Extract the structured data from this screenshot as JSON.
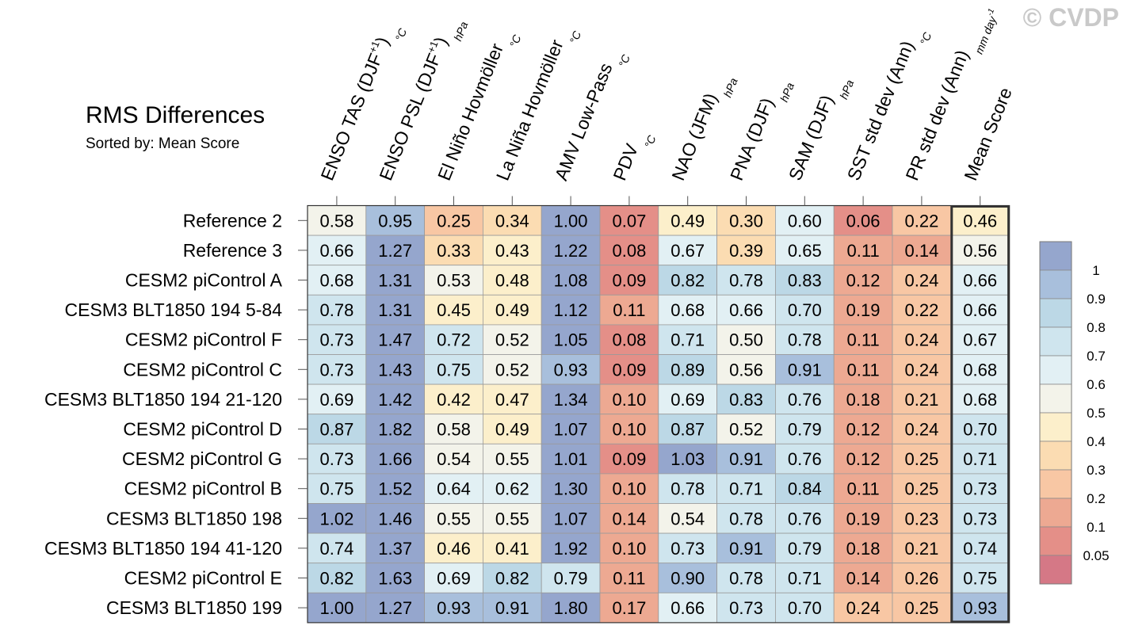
{
  "title": "RMS Differences",
  "subtitle": "Sorted by: Mean Score",
  "watermark": "© CVDP",
  "colorbar": {
    "labels": [
      "1",
      "0.9",
      "0.8",
      "0.7",
      "0.6",
      "0.5",
      "0.4",
      "0.3",
      "0.2",
      "0.1",
      "0.05"
    ],
    "colors": [
      "#95a6cd",
      "#a8bfdc",
      "#bcd8e6",
      "#cfe5ee",
      "#e2f0f4",
      "#f3f3ea",
      "#fcefcb",
      "#fbdcb2",
      "#f8c7a4",
      "#eda992",
      "#e48f88",
      "#d57886"
    ]
  },
  "chart_data": {
    "type": "heatmap",
    "title": "RMS Differences",
    "subtitle": "Sorted by: Mean Score",
    "columns": [
      {
        "label": "ENSO TAS (DJF",
        "sup": "+1",
        "close": ")",
        "unit": "°C",
        "unit_sup": ""
      },
      {
        "label": "ENSO PSL (DJF",
        "sup": "+1",
        "close": ")",
        "unit": "hPa",
        "unit_sup": ""
      },
      {
        "label": "El Niño Hovmöller",
        "sup": "",
        "close": "",
        "unit": "°C",
        "unit_sup": ""
      },
      {
        "label": "La Niña Hovmöller",
        "sup": "",
        "close": "",
        "unit": "°C",
        "unit_sup": ""
      },
      {
        "label": "AMV Low-Pass",
        "sup": "",
        "close": "",
        "unit": "°C",
        "unit_sup": ""
      },
      {
        "label": "PDV",
        "sup": "",
        "close": "",
        "unit": "°C",
        "unit_sup": ""
      },
      {
        "label": "NAO (JFM)",
        "sup": "",
        "close": "",
        "unit": "hPa",
        "unit_sup": ""
      },
      {
        "label": "PNA (DJF)",
        "sup": "",
        "close": "",
        "unit": "hPa",
        "unit_sup": ""
      },
      {
        "label": "SAM (DJF)",
        "sup": "",
        "close": "",
        "unit": "hPa",
        "unit_sup": ""
      },
      {
        "label": "SST std dev (Ann)",
        "sup": "",
        "close": "",
        "unit": "°C",
        "unit_sup": ""
      },
      {
        "label": "PR std dev (Ann)",
        "sup": "",
        "close": "",
        "unit": "mm day",
        "unit_sup": "-1"
      },
      {
        "label": "Mean Score",
        "sup": "",
        "close": "",
        "unit": "",
        "unit_sup": ""
      }
    ],
    "rows": [
      "Reference 2",
      "Reference 3",
      "CESM2 piControl A",
      "CESM3 BLT1850 194 5-84",
      "CESM2 piControl F",
      "CESM2 piControl C",
      "CESM3 BLT1850 194 21-120",
      "CESM2 piControl D",
      "CESM2 piControl G",
      "CESM2 piControl B",
      "CESM3 BLT1850 198",
      "CESM3 BLT1850 194 41-120",
      "CESM2 piControl E",
      "CESM3 BLT1850 199"
    ],
    "values": [
      [
        "0.58",
        "0.95",
        "0.25",
        "0.34",
        "1.00",
        "0.07",
        "0.49",
        "0.30",
        "0.60",
        "0.06",
        "0.22",
        "0.46"
      ],
      [
        "0.66",
        "1.27",
        "0.33",
        "0.43",
        "1.22",
        "0.08",
        "0.67",
        "0.39",
        "0.65",
        "0.11",
        "0.14",
        "0.56"
      ],
      [
        "0.68",
        "1.31",
        "0.53",
        "0.48",
        "1.08",
        "0.09",
        "0.82",
        "0.78",
        "0.83",
        "0.12",
        "0.24",
        "0.66"
      ],
      [
        "0.78",
        "1.31",
        "0.45",
        "0.49",
        "1.12",
        "0.11",
        "0.68",
        "0.66",
        "0.70",
        "0.19",
        "0.22",
        "0.66"
      ],
      [
        "0.73",
        "1.47",
        "0.72",
        "0.52",
        "1.05",
        "0.08",
        "0.71",
        "0.50",
        "0.78",
        "0.11",
        "0.24",
        "0.67"
      ],
      [
        "0.73",
        "1.43",
        "0.75",
        "0.52",
        "0.93",
        "0.09",
        "0.89",
        "0.56",
        "0.91",
        "0.11",
        "0.24",
        "0.68"
      ],
      [
        "0.69",
        "1.42",
        "0.42",
        "0.47",
        "1.34",
        "0.10",
        "0.69",
        "0.83",
        "0.76",
        "0.18",
        "0.21",
        "0.68"
      ],
      [
        "0.87",
        "1.82",
        "0.58",
        "0.49",
        "1.07",
        "0.10",
        "0.87",
        "0.52",
        "0.79",
        "0.12",
        "0.24",
        "0.70"
      ],
      [
        "0.73",
        "1.66",
        "0.54",
        "0.55",
        "1.01",
        "0.09",
        "1.03",
        "0.91",
        "0.76",
        "0.12",
        "0.25",
        "0.71"
      ],
      [
        "0.75",
        "1.52",
        "0.64",
        "0.62",
        "1.30",
        "0.10",
        "0.78",
        "0.71",
        "0.84",
        "0.11",
        "0.25",
        "0.73"
      ],
      [
        "1.02",
        "1.46",
        "0.55",
        "0.55",
        "1.07",
        "0.14",
        "0.54",
        "0.78",
        "0.76",
        "0.19",
        "0.23",
        "0.73"
      ],
      [
        "0.74",
        "1.37",
        "0.46",
        "0.41",
        "1.92",
        "0.10",
        "0.73",
        "0.91",
        "0.79",
        "0.18",
        "0.21",
        "0.74"
      ],
      [
        "0.82",
        "1.63",
        "0.69",
        "0.82",
        "0.79",
        "0.11",
        "0.90",
        "0.78",
        "0.71",
        "0.14",
        "0.26",
        "0.75"
      ],
      [
        "1.00",
        "1.27",
        "0.93",
        "0.91",
        "1.80",
        "0.17",
        "0.66",
        "0.73",
        "0.70",
        "0.24",
        "0.25",
        "0.93"
      ]
    ]
  }
}
